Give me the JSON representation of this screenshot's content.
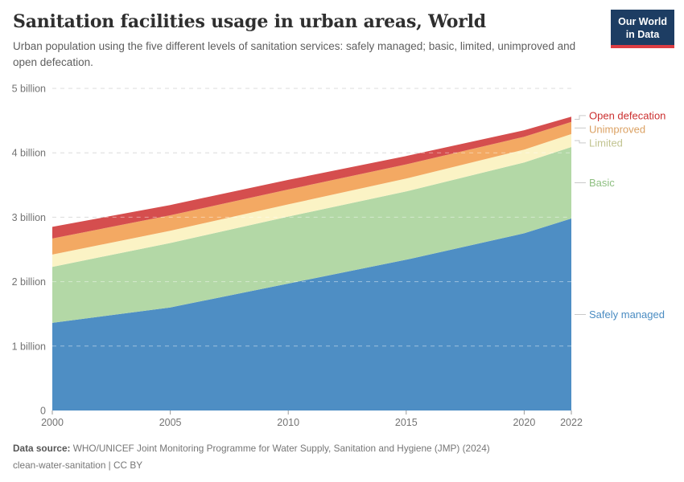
{
  "header": {
    "title": "Sanitation facilities usage in urban areas, World",
    "subtitle": "Urban population using the five different levels of sanitation services: safely managed; basic, limited, unimproved and open defecation.",
    "logo": {
      "line1": "Our World",
      "line2": "in Data"
    }
  },
  "footer": {
    "source_label": "Data source:",
    "source_text": "WHO/UNICEF Joint Monitoring Programme for Water Supply, Sanitation and Hygiene (JMP) (2024)",
    "note_text": "clean-water-sanitation | CC BY"
  },
  "chart_data": {
    "type": "area",
    "stacked": true,
    "title": "Sanitation facilities usage in urban areas, World",
    "unit": "people",
    "x": [
      2000,
      2005,
      2010,
      2015,
      2020,
      2022
    ],
    "x_tick_labels": [
      "2000",
      "2005",
      "2010",
      "2015",
      "2020",
      "2022"
    ],
    "y_ticks": [
      0,
      1,
      2,
      3,
      4,
      5
    ],
    "y_tick_labels": [
      "0",
      "1 billion",
      "2 billion",
      "3 billion",
      "4 billion",
      "5 billion"
    ],
    "ylim": [
      0,
      5
    ],
    "grid": "dashed-horizontal",
    "legend_position": "direct-labels-right",
    "series": [
      {
        "name": "Safely managed",
        "color": "#4e8ec4",
        "label_color": "#4a8cc2",
        "values": [
          1.36,
          1.6,
          1.97,
          2.34,
          2.75,
          2.98
        ]
      },
      {
        "name": "Basic",
        "color": "#b3d8a6",
        "label_color": "#8ebf81",
        "values": [
          0.87,
          1.0,
          1.04,
          1.06,
          1.1,
          1.11
        ]
      },
      {
        "name": "Limited",
        "color": "#fbf3c5",
        "label_color": "#c2c491",
        "values": [
          0.19,
          0.19,
          0.19,
          0.2,
          0.2,
          0.2
        ]
      },
      {
        "name": "Unimproved",
        "color": "#f3a963",
        "label_color": "#dba163",
        "values": [
          0.25,
          0.24,
          0.23,
          0.22,
          0.2,
          0.19
        ]
      },
      {
        "name": "Open defecation",
        "color": "#d54e4e",
        "label_color": "#cb2f2f",
        "values": [
          0.18,
          0.16,
          0.15,
          0.13,
          0.1,
          0.08
        ]
      }
    ]
  }
}
